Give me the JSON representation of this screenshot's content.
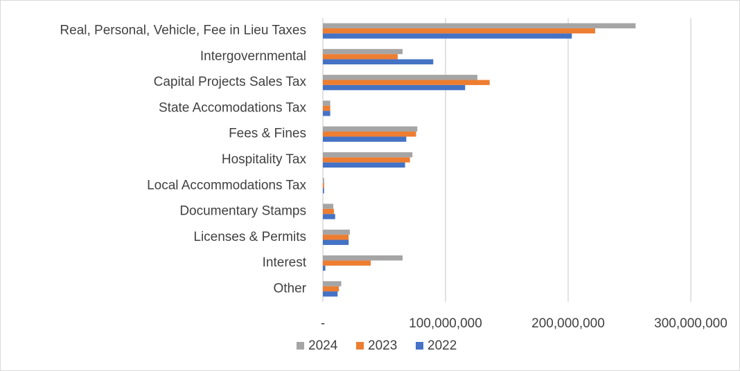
{
  "chart_data": {
    "type": "hbar",
    "categories": [
      "Real, Personal, Vehicle, Fee in Lieu Taxes",
      "Intergovernmental",
      "Capital Projects Sales Tax",
      "State Accomodations Tax",
      "Fees & Fines",
      "Hospitality Tax",
      "Local Accommodations Tax",
      "Documentary Stamps",
      "Licenses & Permits",
      "Interest",
      "Other"
    ],
    "series": [
      {
        "name": "2024",
        "color": "#a5a5a5",
        "values": [
          255000000,
          65000000,
          126000000,
          6000000,
          77000000,
          73000000,
          1000000,
          8500000,
          22000000,
          65000000,
          15000000
        ]
      },
      {
        "name": "2023",
        "color": "#ed7d31",
        "values": [
          222000000,
          61000000,
          136000000,
          6000000,
          76000000,
          71000000,
          1000000,
          9000000,
          21000000,
          39000000,
          13000000
        ]
      },
      {
        "name": "2022",
        "color": "#4472c4",
        "values": [
          203000000,
          90000000,
          116000000,
          6000000,
          68000000,
          67000000,
          1000000,
          10000000,
          21000000,
          2000000,
          12000000
        ]
      }
    ],
    "xlim": [
      0,
      300000000
    ],
    "xticks": [
      {
        "value": 0,
        "label": "-"
      },
      {
        "value": 100000000,
        "label": "100,000,000"
      },
      {
        "value": 200000000,
        "label": "200,000,000"
      },
      {
        "value": 300000000,
        "label": "300,000,000"
      }
    ],
    "grid": true,
    "legend": "bottom"
  }
}
